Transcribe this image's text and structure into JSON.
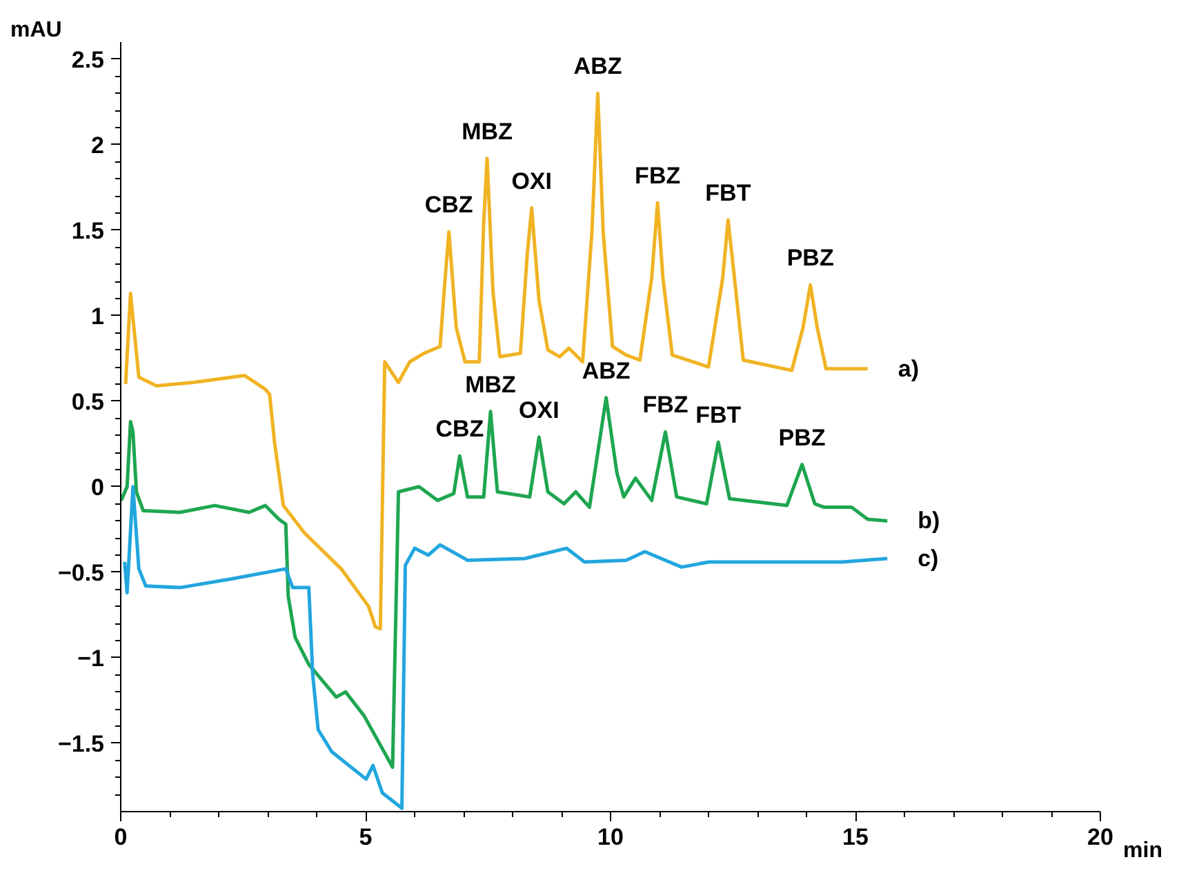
{
  "chart_data": {
    "type": "line",
    "xlabel": "min",
    "ylabel": "mAU",
    "xlim": [
      0,
      20
    ],
    "ylim": [
      -1.9,
      2.6
    ],
    "xticks": [
      0,
      {
        "value": 1,
        "label": null
      },
      {
        "value": 2,
        "label": null
      },
      {
        "value": 3,
        "label": null
      },
      {
        "value": 4,
        "label": null
      },
      5,
      {
        "value": 6,
        "label": null
      },
      {
        "value": 7,
        "label": null
      },
      {
        "value": 8,
        "label": null
      },
      {
        "value": 9,
        "label": null
      },
      10,
      {
        "value": 11,
        "label": null
      },
      {
        "value": 12,
        "label": null
      },
      {
        "value": 13,
        "label": null
      },
      {
        "value": 14,
        "label": null
      },
      15,
      {
        "value": 16,
        "label": null
      },
      {
        "value": 17,
        "label": null
      },
      {
        "value": 18,
        "label": null
      },
      {
        "value": 19,
        "label": null
      },
      20
    ],
    "yticks": [
      {
        "value": -1.8,
        "label": null
      },
      {
        "value": -1.7,
        "label": null
      },
      {
        "value": -1.6,
        "label": null
      },
      -1.5,
      {
        "value": -1.4,
        "label": null
      },
      {
        "value": -1.3,
        "label": null
      },
      {
        "value": -1.2,
        "label": null
      },
      {
        "value": -1.1,
        "label": null
      },
      -1,
      {
        "value": -0.9,
        "label": null
      },
      {
        "value": -0.8,
        "label": null
      },
      {
        "value": -0.7,
        "label": null
      },
      {
        "value": -0.6,
        "label": null
      },
      -0.5,
      {
        "value": -0.4,
        "label": null
      },
      {
        "value": -0.3,
        "label": null
      },
      {
        "value": -0.2,
        "label": null
      },
      {
        "value": -0.1,
        "label": null
      },
      0,
      {
        "value": 0.1,
        "label": null
      },
      {
        "value": 0.2,
        "label": null
      },
      {
        "value": 0.3,
        "label": null
      },
      {
        "value": 0.4,
        "label": null
      },
      0.5,
      {
        "value": 0.6,
        "label": null
      },
      {
        "value": 0.7,
        "label": null
      },
      {
        "value": 0.8,
        "label": null
      },
      {
        "value": 0.9,
        "label": null
      },
      1,
      {
        "value": 1.1,
        "label": null
      },
      {
        "value": 1.2,
        "label": null
      },
      {
        "value": 1.3,
        "label": null
      },
      {
        "value": 1.4,
        "label": null
      },
      1.5,
      {
        "value": 1.6,
        "label": null
      },
      {
        "value": 1.7,
        "label": null
      },
      {
        "value": 1.8,
        "label": null
      },
      {
        "value": 1.9,
        "label": null
      },
      2,
      {
        "value": 2.1,
        "label": null
      },
      {
        "value": 2.2,
        "label": null
      },
      {
        "value": 2.3,
        "label": null
      },
      {
        "value": 2.4,
        "label": null
      },
      2.5
    ],
    "grid": false,
    "legend": false,
    "marker": "none",
    "line_style": "solid",
    "series": [
      {
        "name": "a)",
        "color": "#f0b323",
        "x": [
          0.1,
          0.2,
          0.37,
          0.73,
          1.49,
          2.53,
          2.95,
          3.04,
          3.14,
          3.32,
          3.75,
          4.5,
          5.06,
          5.2,
          5.3,
          5.39,
          5.67,
          5.9,
          6.19,
          6.52,
          6.61,
          6.7,
          6.85,
          7.03,
          7.32,
          7.41,
          7.48,
          7.6,
          7.74,
          8.16,
          8.3,
          8.39,
          8.54,
          8.72,
          8.96,
          9.15,
          9.43,
          9.62,
          9.74,
          9.85,
          10.04,
          10.32,
          10.6,
          10.84,
          10.96,
          11.07,
          11.26,
          12.0,
          12.29,
          12.4,
          12.53,
          12.71,
          13.7,
          13.93,
          14.08,
          14.22,
          14.4,
          15.25
        ],
        "values": [
          0.6,
          1.13,
          0.64,
          0.59,
          0.61,
          0.65,
          0.57,
          0.54,
          0.26,
          -0.11,
          -0.27,
          -0.48,
          -0.7,
          -0.82,
          -0.83,
          0.73,
          0.61,
          0.73,
          0.78,
          0.82,
          1.17,
          1.49,
          0.93,
          0.73,
          0.73,
          1.54,
          1.92,
          1.14,
          0.76,
          0.78,
          1.36,
          1.63,
          1.09,
          0.8,
          0.76,
          0.81,
          0.73,
          1.49,
          2.3,
          1.49,
          0.82,
          0.77,
          0.74,
          1.22,
          1.66,
          1.22,
          0.77,
          0.7,
          1.22,
          1.56,
          1.22,
          0.74,
          0.68,
          0.93,
          1.18,
          0.93,
          0.69,
          0.69
        ]
      },
      {
        "name": "b)",
        "color": "#1ea650",
        "x": [
          0.01,
          0.13,
          0.2,
          0.25,
          0.32,
          0.46,
          1.21,
          1.92,
          2.62,
          2.95,
          3.23,
          3.37,
          3.42,
          3.56,
          3.84,
          4.4,
          4.59,
          4.97,
          5.55,
          5.67,
          6.09,
          6.47,
          6.8,
          6.92,
          7.08,
          7.41,
          7.55,
          7.69,
          8.35,
          8.54,
          8.72,
          9.05,
          9.29,
          9.57,
          9.91,
          10.13,
          10.27,
          10.51,
          10.84,
          11.12,
          11.35,
          11.96,
          12.2,
          12.43,
          13.6,
          13.91,
          14.17,
          14.36,
          14.92,
          15.25,
          15.65
        ],
        "values": [
          -0.08,
          0.0,
          0.38,
          0.32,
          -0.03,
          -0.14,
          -0.15,
          -0.11,
          -0.15,
          -0.11,
          -0.19,
          -0.22,
          -0.64,
          -0.88,
          -1.04,
          -1.23,
          -1.2,
          -1.34,
          -1.64,
          -0.03,
          0.0,
          -0.08,
          -0.04,
          0.18,
          -0.06,
          -0.06,
          0.44,
          -0.03,
          -0.06,
          0.29,
          -0.03,
          -0.1,
          -0.03,
          -0.12,
          0.52,
          0.08,
          -0.06,
          0.05,
          -0.08,
          0.32,
          -0.06,
          -0.1,
          0.26,
          -0.07,
          -0.11,
          0.13,
          -0.1,
          -0.12,
          -0.12,
          -0.19,
          -0.2
        ]
      },
      {
        "name": "c)",
        "color": "#22a6de",
        "x": [
          0.08,
          0.13,
          0.25,
          0.37,
          0.51,
          1.21,
          2.24,
          3.37,
          3.51,
          3.84,
          3.92,
          4.03,
          4.31,
          5.01,
          5.15,
          5.34,
          5.74,
          5.81,
          6.0,
          6.28,
          6.52,
          7.08,
          8.25,
          9.1,
          9.47,
          10.32,
          10.7,
          11.45,
          12.01,
          14.73,
          15.65
        ],
        "values": [
          -0.44,
          -0.62,
          0.0,
          -0.48,
          -0.58,
          -0.59,
          -0.54,
          -0.48,
          -0.59,
          -0.59,
          -1.1,
          -1.42,
          -1.55,
          -1.71,
          -1.63,
          -1.79,
          -1.88,
          -0.46,
          -0.36,
          -0.4,
          -0.34,
          -0.43,
          -0.42,
          -0.36,
          -0.44,
          -0.43,
          -0.38,
          -0.47,
          -0.44,
          -0.44,
          -0.42
        ]
      }
    ],
    "annotations": [
      {
        "text": "CBZ",
        "x": 6.7,
        "y": 1.49
      },
      {
        "text": "MBZ",
        "x": 7.48,
        "y": 1.92
      },
      {
        "text": "OXI",
        "x": 8.39,
        "y": 1.63
      },
      {
        "text": "ABZ",
        "x": 9.74,
        "y": 2.3
      },
      {
        "text": "FBZ",
        "x": 10.96,
        "y": 1.66
      },
      {
        "text": "FBT",
        "x": 12.4,
        "y": 1.56
      },
      {
        "text": "PBZ",
        "x": 14.08,
        "y": 1.18
      },
      {
        "text": "CBZ",
        "x": 6.92,
        "y": 0.18
      },
      {
        "text": "MBZ",
        "x": 7.55,
        "y": 0.44
      },
      {
        "text": "OXI",
        "x": 8.54,
        "y": 0.29
      },
      {
        "text": "ABZ",
        "x": 9.91,
        "y": 0.52
      },
      {
        "text": "FBZ",
        "x": 11.12,
        "y": 0.32
      },
      {
        "text": "FBT",
        "x": 12.2,
        "y": 0.26
      },
      {
        "text": "PBZ",
        "x": 13.91,
        "y": 0.13
      }
    ]
  }
}
